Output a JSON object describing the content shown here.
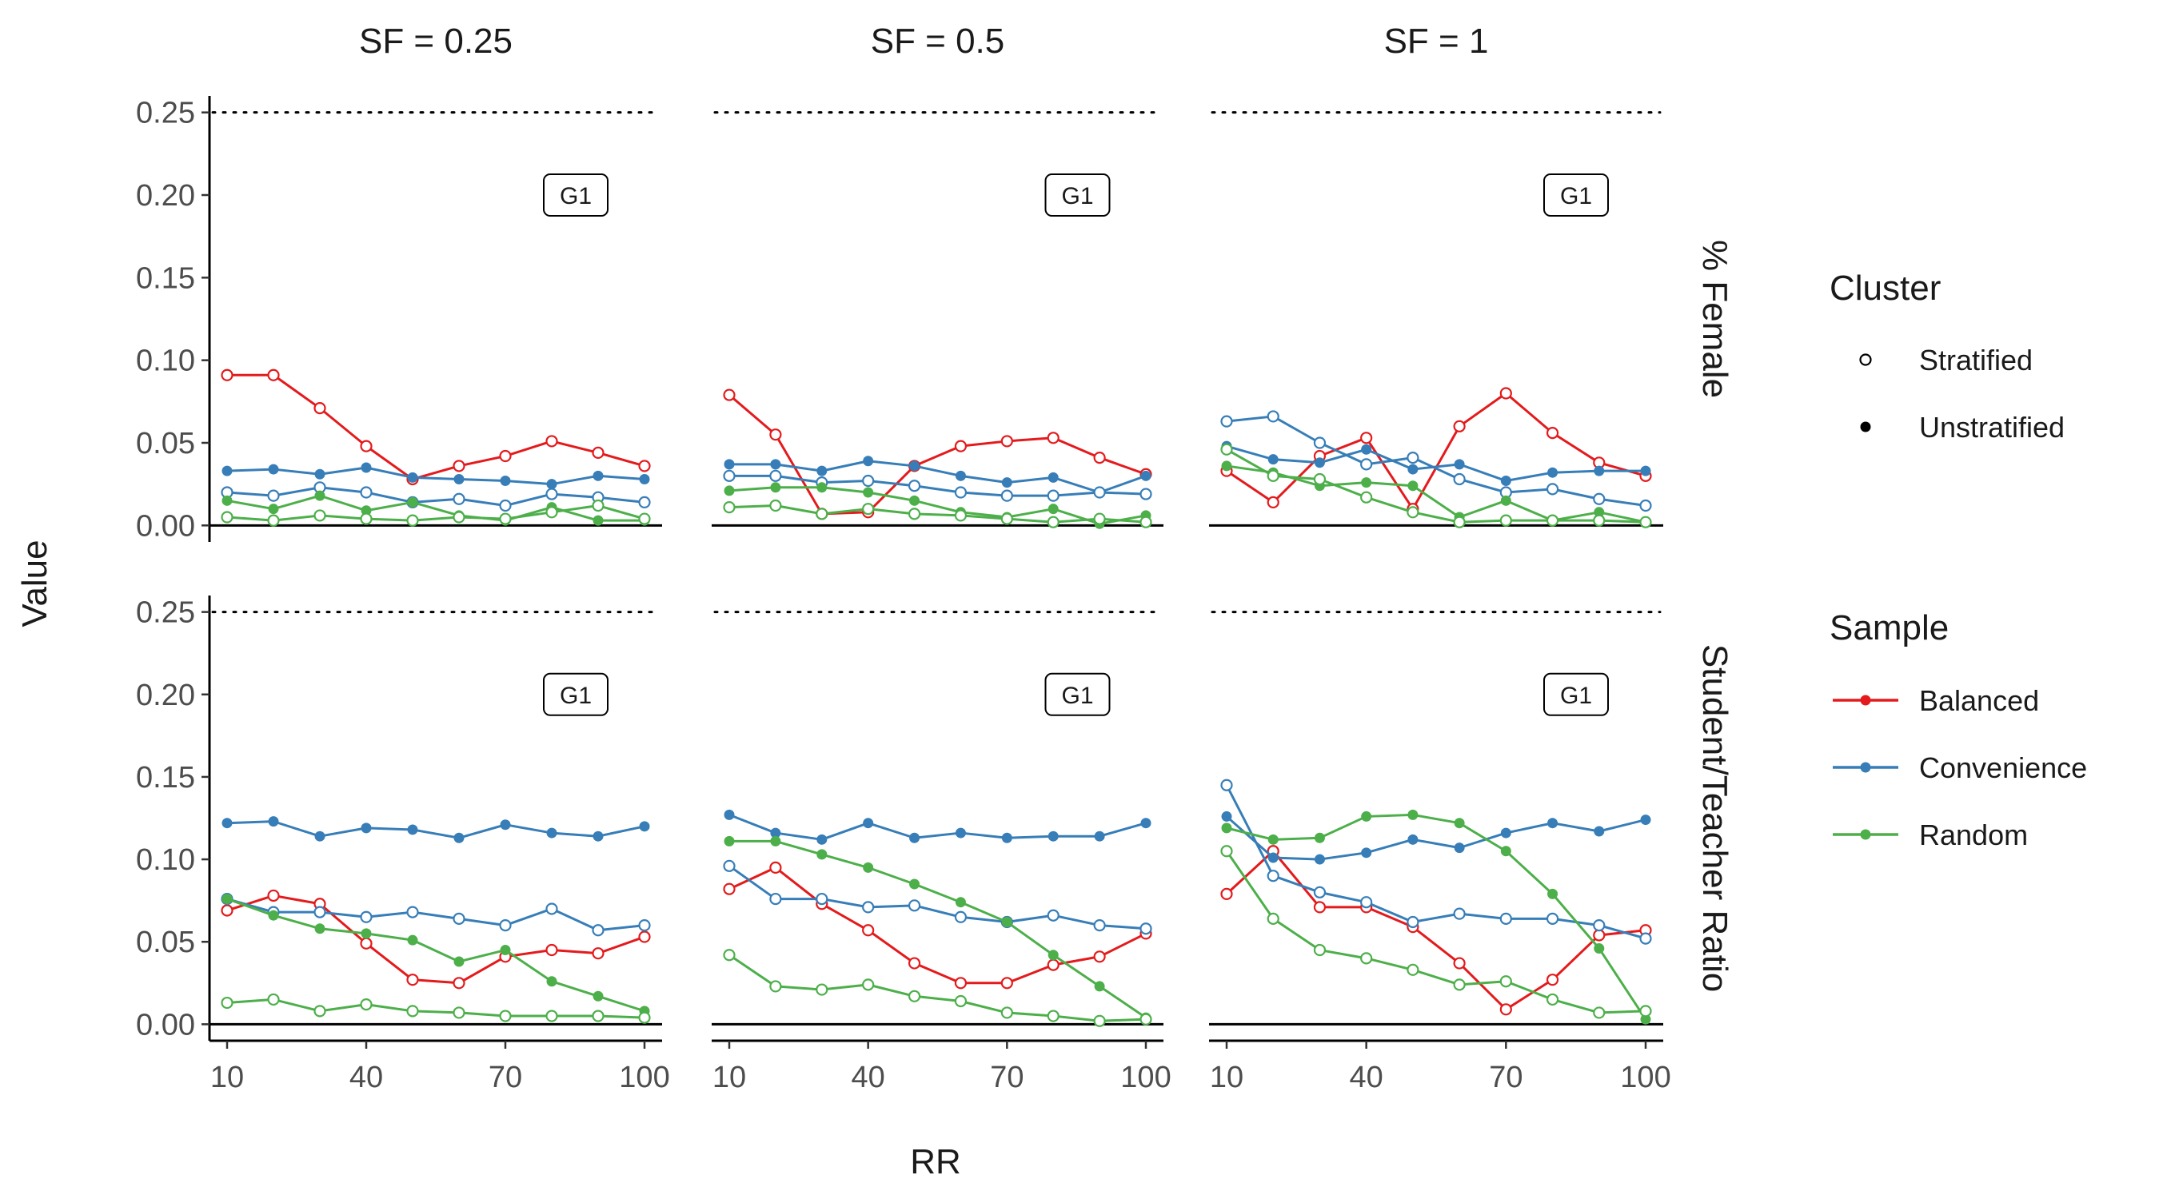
{
  "chart_data": {
    "type": "line",
    "facet_cols": [
      "SF = 0.25",
      "SF = 0.5",
      "SF = 1"
    ],
    "facet_rows": [
      "% Female",
      "Student/Teacher Ratio"
    ],
    "xlabel": "RR",
    "ylabel": "Value",
    "x": [
      10,
      20,
      30,
      40,
      50,
      60,
      70,
      80,
      90,
      100
    ],
    "x_ticks": [
      10,
      40,
      70,
      100
    ],
    "y_ticks": [
      0.0,
      0.05,
      0.1,
      0.15,
      0.2,
      0.25
    ],
    "xlim": [
      10,
      100
    ],
    "ylim": [
      -0.01,
      0.26
    ],
    "reference_line": 0.25,
    "panel_tag": "G1",
    "legends": {
      "cluster": {
        "title": "Cluster",
        "entries": [
          "Stratified",
          "Unstratified"
        ]
      },
      "sample": {
        "title": "Sample",
        "entries": [
          "Balanced",
          "Convenience",
          "Random"
        ]
      }
    },
    "colors": {
      "Balanced": "#e41a1c",
      "Convenience": "#377eb8",
      "Random": "#4daf4a"
    },
    "panels": [
      {
        "row": 0,
        "col": 0,
        "series": [
          {
            "sample": "Balanced",
            "cluster": "Stratified",
            "values": [
              0.091,
              0.091,
              0.071,
              0.048,
              0.028,
              0.036,
              0.042,
              0.051,
              0.044,
              0.036
            ]
          },
          {
            "sample": "Convenience",
            "cluster": "Unstratified",
            "values": [
              0.033,
              0.034,
              0.031,
              0.035,
              0.029,
              0.028,
              0.027,
              0.025,
              0.03,
              0.028
            ]
          },
          {
            "sample": "Convenience",
            "cluster": "Stratified",
            "values": [
              0.02,
              0.018,
              0.023,
              0.02,
              0.014,
              0.016,
              0.012,
              0.019,
              0.017,
              0.014
            ]
          },
          {
            "sample": "Random",
            "cluster": "Unstratified",
            "values": [
              0.015,
              0.01,
              0.018,
              0.009,
              0.014,
              0.006,
              0.003,
              0.011,
              0.003,
              0.003
            ]
          },
          {
            "sample": "Random",
            "cluster": "Stratified",
            "values": [
              0.005,
              0.003,
              0.006,
              0.004,
              0.003,
              0.005,
              0.004,
              0.008,
              0.012,
              0.004
            ]
          }
        ]
      },
      {
        "row": 0,
        "col": 1,
        "series": [
          {
            "sample": "Balanced",
            "cluster": "Stratified",
            "values": [
              0.079,
              0.055,
              0.007,
              0.008,
              0.036,
              0.048,
              0.051,
              0.053,
              0.041,
              0.031
            ]
          },
          {
            "sample": "Convenience",
            "cluster": "Unstratified",
            "values": [
              0.037,
              0.037,
              0.033,
              0.039,
              0.036,
              0.03,
              0.026,
              0.029,
              0.02,
              0.03
            ]
          },
          {
            "sample": "Convenience",
            "cluster": "Stratified",
            "values": [
              0.03,
              0.03,
              0.026,
              0.027,
              0.024,
              0.02,
              0.018,
              0.018,
              0.02,
              0.019
            ]
          },
          {
            "sample": "Random",
            "cluster": "Unstratified",
            "values": [
              0.021,
              0.023,
              0.023,
              0.02,
              0.015,
              0.008,
              0.005,
              0.01,
              0.001,
              0.006
            ]
          },
          {
            "sample": "Random",
            "cluster": "Stratified",
            "values": [
              0.011,
              0.012,
              0.007,
              0.01,
              0.007,
              0.006,
              0.004,
              0.002,
              0.004,
              0.002
            ]
          }
        ]
      },
      {
        "row": 0,
        "col": 2,
        "series": [
          {
            "sample": "Balanced",
            "cluster": "Stratified",
            "values": [
              0.033,
              0.014,
              0.042,
              0.053,
              0.01,
              0.06,
              0.08,
              0.056,
              0.038,
              0.03
            ]
          },
          {
            "sample": "Convenience",
            "cluster": "Unstratified",
            "values": [
              0.048,
              0.04,
              0.038,
              0.046,
              0.034,
              0.037,
              0.027,
              0.032,
              0.033,
              0.033
            ]
          },
          {
            "sample": "Convenience",
            "cluster": "Stratified",
            "values": [
              0.063,
              0.066,
              0.05,
              0.037,
              0.041,
              0.028,
              0.02,
              0.022,
              0.016,
              0.012
            ]
          },
          {
            "sample": "Random",
            "cluster": "Unstratified",
            "values": [
              0.036,
              0.032,
              0.024,
              0.026,
              0.024,
              0.005,
              0.015,
              0.003,
              0.008,
              0.002
            ]
          },
          {
            "sample": "Random",
            "cluster": "Stratified",
            "values": [
              0.046,
              0.03,
              0.028,
              0.017,
              0.008,
              0.002,
              0.003,
              0.003,
              0.003,
              0.002
            ]
          }
        ]
      },
      {
        "row": 1,
        "col": 0,
        "series": [
          {
            "sample": "Balanced",
            "cluster": "Stratified",
            "values": [
              0.069,
              0.078,
              0.073,
              0.049,
              0.027,
              0.025,
              0.041,
              0.045,
              0.043,
              0.053
            ]
          },
          {
            "sample": "Convenience",
            "cluster": "Unstratified",
            "values": [
              0.122,
              0.123,
              0.114,
              0.119,
              0.118,
              0.113,
              0.121,
              0.116,
              0.114,
              0.12
            ]
          },
          {
            "sample": "Convenience",
            "cluster": "Stratified",
            "values": [
              0.076,
              0.068,
              0.068,
              0.065,
              0.068,
              0.064,
              0.06,
              0.07,
              0.057,
              0.06
            ]
          },
          {
            "sample": "Random",
            "cluster": "Unstratified",
            "values": [
              0.076,
              0.066,
              0.058,
              0.055,
              0.051,
              0.038,
              0.045,
              0.026,
              0.017,
              0.008
            ]
          },
          {
            "sample": "Random",
            "cluster": "Stratified",
            "values": [
              0.013,
              0.015,
              0.008,
              0.012,
              0.008,
              0.007,
              0.005,
              0.005,
              0.005,
              0.004
            ]
          }
        ]
      },
      {
        "row": 1,
        "col": 1,
        "series": [
          {
            "sample": "Balanced",
            "cluster": "Stratified",
            "values": [
              0.082,
              0.095,
              0.073,
              0.057,
              0.037,
              0.025,
              0.025,
              0.036,
              0.041,
              0.055
            ]
          },
          {
            "sample": "Convenience",
            "cluster": "Unstratified",
            "values": [
              0.127,
              0.116,
              0.112,
              0.122,
              0.113,
              0.116,
              0.113,
              0.114,
              0.114,
              0.122
            ]
          },
          {
            "sample": "Convenience",
            "cluster": "Stratified",
            "values": [
              0.096,
              0.076,
              0.076,
              0.071,
              0.072,
              0.065,
              0.062,
              0.066,
              0.06,
              0.058
            ]
          },
          {
            "sample": "Random",
            "cluster": "Unstratified",
            "values": [
              0.111,
              0.111,
              0.103,
              0.095,
              0.085,
              0.074,
              0.062,
              0.042,
              0.023,
              0.004
            ]
          },
          {
            "sample": "Random",
            "cluster": "Stratified",
            "values": [
              0.042,
              0.023,
              0.021,
              0.024,
              0.017,
              0.014,
              0.007,
              0.005,
              0.002,
              0.003
            ]
          }
        ]
      },
      {
        "row": 1,
        "col": 2,
        "series": [
          {
            "sample": "Balanced",
            "cluster": "Stratified",
            "values": [
              0.079,
              0.105,
              0.071,
              0.071,
              0.059,
              0.037,
              0.009,
              0.027,
              0.054,
              0.057
            ]
          },
          {
            "sample": "Convenience",
            "cluster": "Unstratified",
            "values": [
              0.126,
              0.101,
              0.1,
              0.104,
              0.112,
              0.107,
              0.116,
              0.122,
              0.117,
              0.124
            ]
          },
          {
            "sample": "Convenience",
            "cluster": "Stratified",
            "values": [
              0.145,
              0.09,
              0.08,
              0.074,
              0.062,
              0.067,
              0.064,
              0.064,
              0.06,
              0.052
            ]
          },
          {
            "sample": "Random",
            "cluster": "Unstratified",
            "values": [
              0.119,
              0.112,
              0.113,
              0.126,
              0.127,
              0.122,
              0.105,
              0.079,
              0.046,
              0.003
            ]
          },
          {
            "sample": "Random",
            "cluster": "Stratified",
            "values": [
              0.105,
              0.064,
              0.045,
              0.04,
              0.033,
              0.024,
              0.026,
              0.015,
              0.007,
              0.008
            ]
          }
        ]
      }
    ]
  }
}
